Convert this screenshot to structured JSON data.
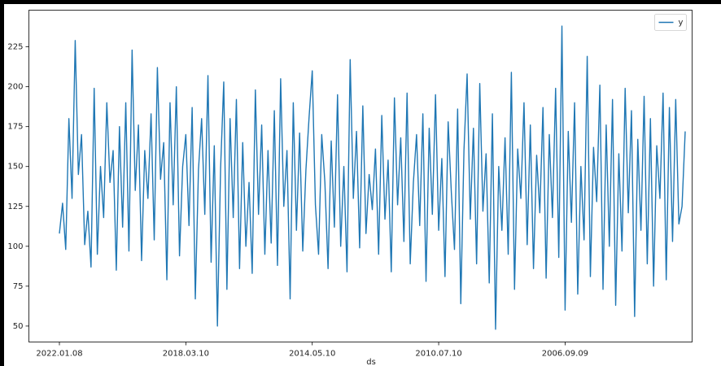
{
  "chart_data": {
    "type": "line",
    "x_label": "ds",
    "categories": [
      "2022.01.08",
      null,
      null,
      null,
      null,
      null,
      null,
      null,
      null,
      null,
      null,
      null,
      null,
      null,
      null,
      null,
      null,
      null,
      null,
      null,
      null,
      null,
      null,
      null,
      null,
      null,
      null,
      null,
      null,
      null,
      null,
      null,
      null,
      null,
      null,
      null,
      null,
      null,
      null,
      null,
      "2018.03.10",
      null,
      null,
      null,
      null,
      null,
      null,
      null,
      null,
      null,
      null,
      null,
      null,
      null,
      null,
      null,
      null,
      null,
      null,
      null,
      null,
      null,
      null,
      null,
      null,
      null,
      null,
      null,
      null,
      null,
      null,
      null,
      null,
      null,
      null,
      null,
      null,
      null,
      null,
      null,
      "2014.05.10",
      null,
      null,
      null,
      null,
      null,
      null,
      null,
      null,
      null,
      null,
      null,
      null,
      null,
      null,
      null,
      null,
      null,
      null,
      null,
      null,
      null,
      null,
      null,
      null,
      null,
      null,
      null,
      null,
      null,
      null,
      null,
      null,
      null,
      null,
      null,
      null,
      null,
      null,
      null,
      "2010.07.10",
      null,
      null,
      null,
      null,
      null,
      null,
      null,
      null,
      null,
      null,
      null,
      null,
      null,
      null,
      null,
      null,
      null,
      null,
      null,
      null,
      null,
      null,
      null,
      null,
      null,
      null,
      null,
      null,
      null,
      null,
      null,
      null,
      null,
      null,
      null,
      null,
      null,
      null,
      null,
      "2006.09.09",
      null,
      null,
      null,
      null,
      null,
      null,
      null,
      null,
      null,
      null,
      null,
      null,
      null,
      null,
      null,
      null,
      null,
      null,
      null,
      null,
      null,
      null,
      null,
      null,
      null,
      null,
      null,
      null,
      null,
      null,
      null,
      null,
      null,
      null,
      null,
      null,
      null,
      null
    ],
    "series": [
      {
        "name": "y",
        "color": "#1f77b4",
        "values": [
          108,
          127,
          98,
          180,
          130,
          229,
          145,
          170,
          101,
          122,
          87,
          199,
          95,
          150,
          118,
          190,
          140,
          160,
          85,
          175,
          112,
          190,
          97,
          223,
          135,
          176,
          91,
          160,
          130,
          183,
          104,
          212,
          142,
          165,
          79,
          190,
          126,
          200,
          94,
          150,
          170,
          113,
          187,
          67,
          148,
          180,
          120,
          207,
          90,
          163,
          50,
          149,
          203,
          73,
          180,
          118,
          192,
          86,
          165,
          100,
          140,
          83,
          198,
          120,
          176,
          95,
          160,
          102,
          185,
          88,
          205,
          125,
          160,
          67,
          190,
          110,
          171,
          97,
          148,
          181,
          210,
          126,
          95,
          170,
          140,
          86,
          166,
          112,
          195,
          100,
          150,
          84,
          217,
          130,
          172,
          99,
          188,
          108,
          145,
          123,
          161,
          95,
          182,
          117,
          154,
          84,
          193,
          126,
          168,
          103,
          196,
          89,
          140,
          170,
          113,
          183,
          78,
          174,
          120,
          195,
          110,
          155,
          81,
          178,
          134,
          98,
          186,
          64,
          160,
          208,
          117,
          174,
          89,
          202,
          122,
          158,
          77,
          183,
          48,
          150,
          110,
          168,
          95,
          209,
          73,
          161,
          130,
          190,
          101,
          176,
          86,
          157,
          121,
          187,
          80,
          170,
          118,
          199,
          93,
          238,
          60,
          172,
          115,
          190,
          70,
          150,
          104,
          219,
          81,
          162,
          128,
          201,
          73,
          176,
          100,
          192,
          63,
          158,
          97,
          199,
          121,
          185,
          56,
          167,
          110,
          194,
          89,
          180,
          75,
          163,
          130,
          196,
          79,
          187,
          103,
          192,
          114,
          125,
          172
        ]
      }
    ],
    "ylim": [
      40,
      248
    ],
    "yticks": [
      50,
      75,
      100,
      125,
      150,
      175,
      200,
      225
    ],
    "legend": "upper right"
  }
}
